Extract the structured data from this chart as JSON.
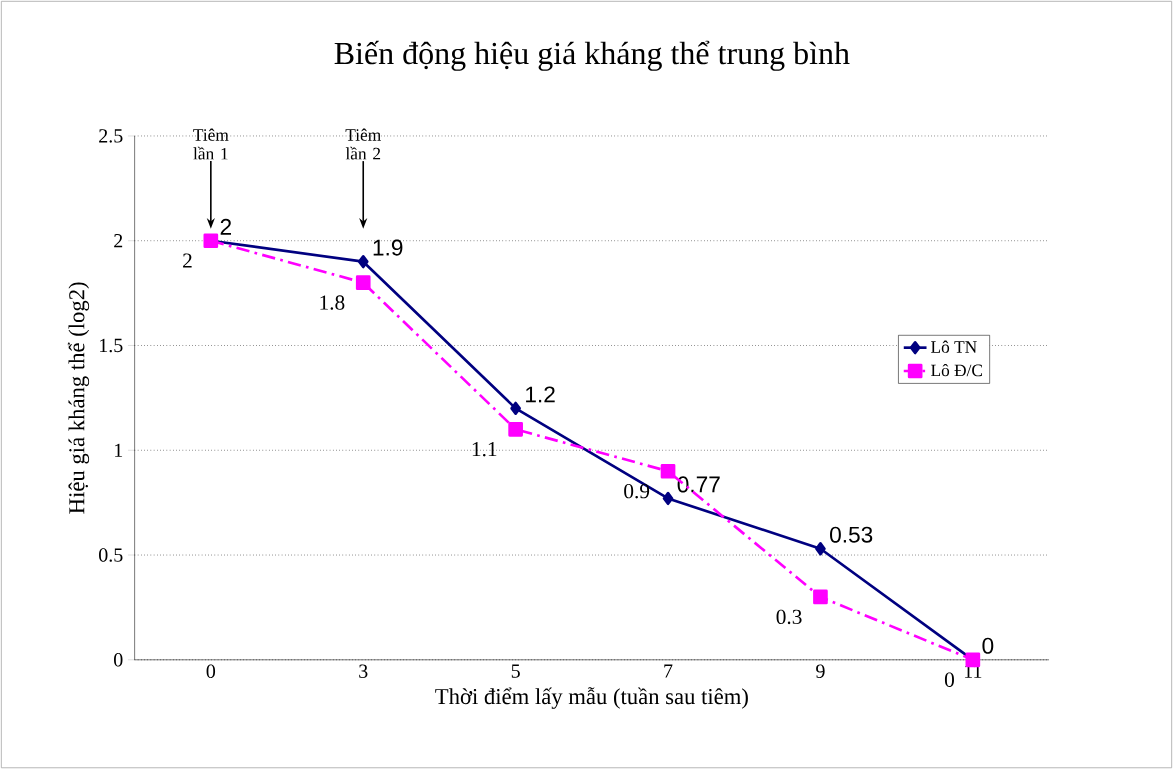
{
  "chart_data": {
    "type": "line",
    "title": "Biến động hiệu giá kháng thể trung bình",
    "xlabel": "Thời điểm lấy mẫu (tuần sau tiêm)",
    "ylabel": "Hiệu giá kháng thể (log2)",
    "categories": [
      "0",
      "3",
      "5",
      "7",
      "9",
      "11"
    ],
    "series": [
      {
        "name": "Lô TN",
        "color": "#000080",
        "values": [
          2,
          1.9,
          1.2,
          0.77,
          0.53,
          0
        ],
        "marker": "diamond",
        "line_style": "solid"
      },
      {
        "name": "Lô Đ/C",
        "color": "#ff00ff",
        "values": [
          2,
          1.8,
          1.1,
          0.9,
          0.3,
          0
        ],
        "marker": "square",
        "line_style": "dashdot"
      }
    ],
    "ylim": [
      0,
      2.5
    ],
    "yticks": [
      0,
      0.5,
      1,
      1.5,
      2,
      2.5
    ],
    "grid": "y",
    "legend": "right",
    "data_labels": true,
    "annotations": [
      "Tiêm lần 1",
      "Tiêm lần 2"
    ]
  }
}
